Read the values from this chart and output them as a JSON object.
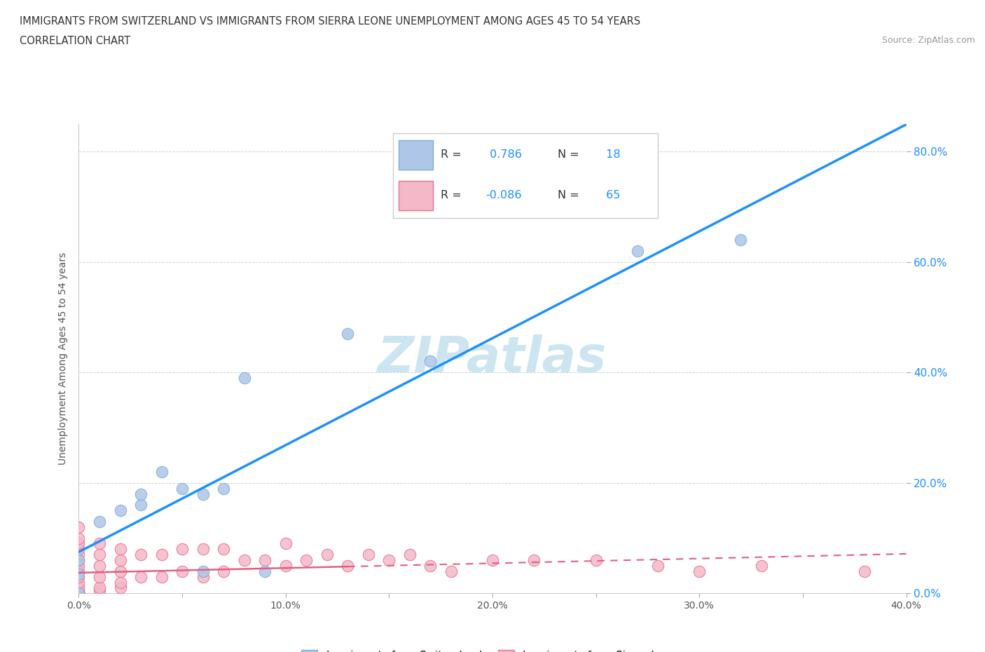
{
  "title_line1": "IMMIGRANTS FROM SWITZERLAND VS IMMIGRANTS FROM SIERRA LEONE UNEMPLOYMENT AMONG AGES 45 TO 54 YEARS",
  "title_line2": "CORRELATION CHART",
  "source_text": "Source: ZipAtlas.com",
  "ylabel": "Unemployment Among Ages 45 to 54 years",
  "xlim": [
    0.0,
    0.4
  ],
  "ylim": [
    0.0,
    0.85
  ],
  "xtick_labels": [
    "0.0%",
    "",
    "10.0%",
    "",
    "20.0%",
    "",
    "30.0%",
    "",
    "40.0%"
  ],
  "xtick_values": [
    0.0,
    0.05,
    0.1,
    0.15,
    0.2,
    0.25,
    0.3,
    0.35,
    0.4
  ],
  "ytick_labels": [
    "0.0%",
    "20.0%",
    "40.0%",
    "60.0%",
    "80.0%"
  ],
  "ytick_values": [
    0.0,
    0.2,
    0.4,
    0.6,
    0.8
  ],
  "grid_color": "#cccccc",
  "background_color": "#ffffff",
  "watermark_text": "ZIPatlas",
  "watermark_color": "#cce5f0",
  "switzerland_color": "#aec6e8",
  "switzerland_edge_color": "#7aafd4",
  "sierra_leone_color": "#f4b8c8",
  "sierra_leone_edge_color": "#e87090",
  "swiss_R": 0.786,
  "swiss_N": 18,
  "sierra_R": -0.086,
  "sierra_N": 65,
  "legend_label_swiss": "Immigrants from Switzerland",
  "legend_label_sierra": "Immigrants from Sierra Leone",
  "swiss_line_color": "#1e90ff",
  "sierra_line_color": "#e06080",
  "swiss_scatter_x": [
    0.0,
    0.0,
    0.0,
    0.01,
    0.02,
    0.03,
    0.03,
    0.04,
    0.05,
    0.06,
    0.06,
    0.07,
    0.08,
    0.09,
    0.13,
    0.17,
    0.27,
    0.32
  ],
  "swiss_scatter_y": [
    0.0,
    0.035,
    0.06,
    0.13,
    0.15,
    0.16,
    0.18,
    0.22,
    0.19,
    0.04,
    0.18,
    0.19,
    0.39,
    0.04,
    0.47,
    0.42,
    0.62,
    0.64
  ],
  "sierra_scatter_x": [
    0.0,
    0.0,
    0.0,
    0.0,
    0.0,
    0.0,
    0.0,
    0.0,
    0.0,
    0.0,
    0.0,
    0.0,
    0.0,
    0.0,
    0.0,
    0.0,
    0.0,
    0.0,
    0.0,
    0.0,
    0.0,
    0.0,
    0.0,
    0.0,
    0.0,
    0.01,
    0.01,
    0.01,
    0.01,
    0.01,
    0.01,
    0.02,
    0.02,
    0.02,
    0.02,
    0.02,
    0.03,
    0.03,
    0.04,
    0.04,
    0.05,
    0.05,
    0.06,
    0.06,
    0.07,
    0.07,
    0.08,
    0.09,
    0.1,
    0.1,
    0.11,
    0.12,
    0.13,
    0.14,
    0.15,
    0.16,
    0.17,
    0.18,
    0.2,
    0.22,
    0.25,
    0.28,
    0.3,
    0.33,
    0.38
  ],
  "sierra_scatter_y": [
    0.0,
    0.0,
    0.0,
    0.0,
    0.0,
    0.0,
    0.0,
    0.0,
    0.0,
    0.0,
    0.0,
    0.0,
    0.0,
    0.005,
    0.01,
    0.02,
    0.03,
    0.04,
    0.05,
    0.06,
    0.07,
    0.08,
    0.09,
    0.1,
    0.12,
    0.005,
    0.01,
    0.03,
    0.05,
    0.07,
    0.09,
    0.01,
    0.02,
    0.04,
    0.06,
    0.08,
    0.03,
    0.07,
    0.03,
    0.07,
    0.04,
    0.08,
    0.03,
    0.08,
    0.04,
    0.08,
    0.06,
    0.06,
    0.05,
    0.09,
    0.06,
    0.07,
    0.05,
    0.07,
    0.06,
    0.07,
    0.05,
    0.04,
    0.06,
    0.06,
    0.06,
    0.05,
    0.04,
    0.05,
    0.04
  ]
}
